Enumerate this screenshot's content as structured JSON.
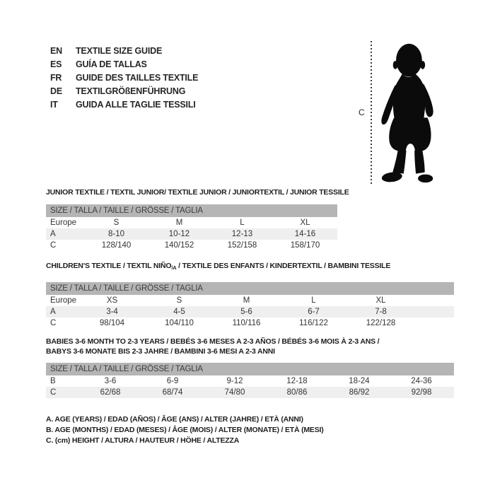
{
  "languages": [
    {
      "code": "EN",
      "label": "TEXTILE SIZE GUIDE"
    },
    {
      "code": "ES",
      "label": "GUÍA DE TALLAS"
    },
    {
      "code": "FR",
      "label": "GUIDE DES TAILLES TEXTILE"
    },
    {
      "code": "DE",
      "label": "TEXTILGRÖßENFÜHRUNG"
    },
    {
      "code": "IT",
      "label": "GUIDA ALLE TAGLIE TESSILI"
    }
  ],
  "figure": {
    "measure_label": "C",
    "silhouette": "baby-toddler-standing-silhouette"
  },
  "sections": [
    {
      "name": "junior",
      "heading_lines": [
        [
          {
            "t": "JUNIOR TEXTILE / TEXTIL JUNIOR/ TEXTILE JUNIOR / JUNIORTEXTIL / JUNIOR TESSILE"
          }
        ]
      ],
      "table": {
        "header": "SIZE / TALLA / TAILLE / GRÖSSE / TAGLIA",
        "rows": [
          {
            "label": "Europe",
            "values": [
              "S",
              "M",
              "L",
              "XL"
            ],
            "shaded": false
          },
          {
            "label": "A",
            "values": [
              "8-10",
              "10-12",
              "12-13",
              "14-16"
            ],
            "shaded": true
          },
          {
            "label": "C",
            "values": [
              "128/140",
              "140/152",
              "152/158",
              "158/170"
            ],
            "shaded": false
          }
        ]
      }
    },
    {
      "name": "children",
      "heading_lines": [
        [
          {
            "t": "CHILDREN'S TEXTILE / TEXTIL NIÑO"
          },
          {
            "t": "/A",
            "sub": true
          },
          {
            "t": " / TEXTILE DES ENFANTS / KINDERTEXTIL / BAMBINI TESSILE"
          }
        ]
      ],
      "table": {
        "header": "SIZE / TALLA / TAILLE / GRÖSSE / TAGLIA",
        "rows": [
          {
            "label": "Europe",
            "values": [
              "XS",
              "S",
              "M",
              "L",
              "XL"
            ],
            "shaded": false
          },
          {
            "label": "A",
            "values": [
              "3-4",
              "4-5",
              "5-6",
              "6-7",
              "7-8"
            ],
            "shaded": true
          },
          {
            "label": "C",
            "values": [
              "98/104",
              "104/110",
              "110/116",
              "116/122",
              "122/128"
            ],
            "shaded": false
          }
        ]
      }
    },
    {
      "name": "babies",
      "heading_lines": [
        [
          {
            "t": "BABIES 3-6 MONTH TO 2-3 YEARS / BEBÉS 3-6 MESES A 2-3 AÑOS / BÉBÉS 3-6 MOIS À 2-3 ANS /"
          }
        ],
        [
          {
            "t": "BABYS 3-6 MONATE BIS 2-3 JAHRE / BAMBINI 3-6 MESI A 2-3 ANNI"
          }
        ]
      ],
      "table": {
        "header": "SIZE / TALLA / TAILLE / GRÖSSE / TAGLIA",
        "rows": [
          {
            "label": "B",
            "values": [
              "3-6",
              "6-9",
              "9-12",
              "12-18",
              "18-24",
              "24-36"
            ],
            "shaded": false
          },
          {
            "label": "C",
            "values": [
              "62/68",
              "68/74",
              "74/80",
              "80/86",
              "86/92",
              "92/98"
            ],
            "shaded": true
          }
        ]
      }
    }
  ],
  "footnotes": [
    "A. AGE (YEARS) / EDAD (AÑOS) / ÂGE (ANS) / ALTER (JAHRE) / ETÀ (ANNI)",
    "B. AGE (MONTHS) / EDAD (MESES) / ÂGE (MOIS) / ALTER (MONATE) / ETÀ (MESI)",
    "C. (cm) HEIGHT / ALTURA / HAUTEUR / HÖHE / ALTEZZA"
  ],
  "colors": {
    "table_header_bg": "#b5b5b5",
    "table_header_text": "#3d3d3d",
    "row_shaded_bg": "#efefef",
    "text": "#262626",
    "silhouette": "#0b0b0b"
  }
}
